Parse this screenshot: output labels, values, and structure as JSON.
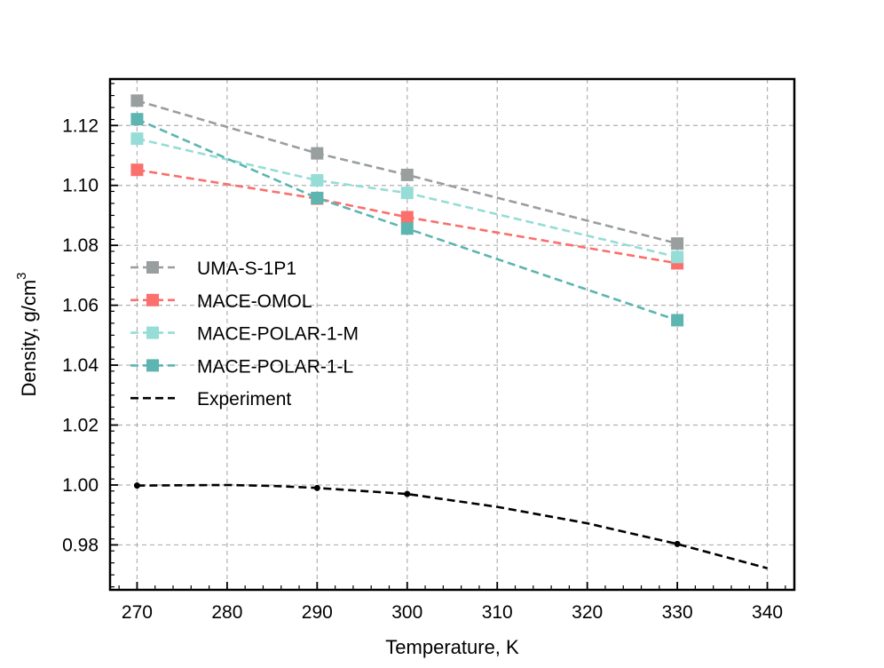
{
  "chart_data": {
    "type": "line",
    "title": "",
    "xlabel": "Temperature, K",
    "ylabel": "Density, g/cm",
    "ylabel_superscript": "3",
    "xlim": [
      267,
      343
    ],
    "ylim": [
      0.965,
      1.1355
    ],
    "xticks": [
      270,
      280,
      290,
      300,
      310,
      320,
      330,
      340
    ],
    "yticks": [
      0.98,
      1.0,
      1.02,
      1.04,
      1.06,
      1.08,
      1.1,
      1.12
    ],
    "ytick_labels": [
      "0.98",
      "1.00",
      "1.02",
      "1.04",
      "1.06",
      "1.08",
      "1.10",
      "1.12"
    ],
    "grid": true,
    "legend_position": "center-left",
    "series": [
      {
        "name": "UMA-S-1P1",
        "color": "#999e9f",
        "marker": "square",
        "linestyle": "dashed",
        "x": [
          270,
          290,
          300,
          330
        ],
        "y": [
          1.1283,
          1.1107,
          1.1035,
          1.0806
        ]
      },
      {
        "name": "MACE-OMOL",
        "color": "#fb6f6c",
        "marker": "square",
        "linestyle": "dashed",
        "x": [
          270,
          290,
          300,
          330
        ],
        "y": [
          1.1052,
          1.0956,
          1.0894,
          1.074
        ]
      },
      {
        "name": "MACE-POLAR-1-M",
        "color": "#95ddd6",
        "marker": "square",
        "linestyle": "dashed",
        "x": [
          270,
          290,
          300,
          330
        ],
        "y": [
          1.1156,
          1.1017,
          1.0975,
          1.0761
        ]
      },
      {
        "name": "MACE-POLAR-1-L",
        "color": "#5cb5b1",
        "marker": "square",
        "linestyle": "dashed",
        "x": [
          270,
          290,
          300,
          330
        ],
        "y": [
          1.1221,
          1.0958,
          1.0856,
          1.055
        ]
      },
      {
        "name": "Experiment",
        "color": "#000000",
        "marker": "small-dot",
        "linestyle": "dashed",
        "x": [
          270,
          280,
          285,
          290,
          300,
          310,
          320,
          330,
          340
        ],
        "y": [
          0.9998,
          1.0,
          0.9997,
          0.999,
          0.997,
          0.9927,
          0.9872,
          0.9803,
          0.9722
        ],
        "marker_x": [
          270,
          290,
          300,
          330
        ]
      }
    ]
  }
}
